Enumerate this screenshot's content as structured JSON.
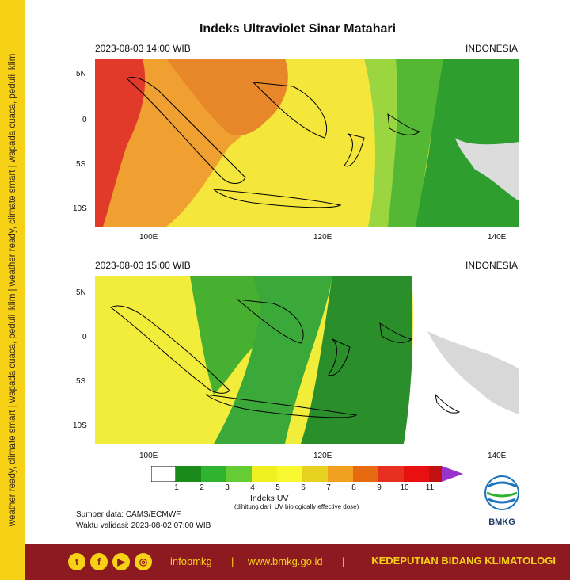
{
  "side_strip": {
    "text": "weather ready, climate smart | wapada cuaca, peduli iklim | weather ready, climate smart | wapada cuaca, peduli iklim"
  },
  "title": "Indeks Ultraviolet Sinar Matahari",
  "panels": [
    {
      "date": "2023-08-03  14:00 WIB",
      "region": "INDONESIA"
    },
    {
      "date": "2023-08-03  15:00 WIB",
      "region": "INDONESIA"
    }
  ],
  "lat_ticks": [
    "5N",
    "0",
    "5S",
    "10S"
  ],
  "lon_ticks": [
    "100E",
    "120E",
    "140E"
  ],
  "colorbar": {
    "title": "Indeks UV",
    "subtitle": "(dihitung dari: UV biologically effective dose)",
    "labels": [
      "1",
      "2",
      "3",
      "4",
      "5",
      "6",
      "7",
      "8",
      "9",
      "10",
      "11"
    ],
    "colors": [
      "#ffffff",
      "#1a8a1a",
      "#2fb42f",
      "#66cc33",
      "#f0f020",
      "#f8f830",
      "#e6d020",
      "#f2a020",
      "#e86a10",
      "#e83020",
      "#e81010",
      "#c01010",
      "#9933cc"
    ]
  },
  "source": {
    "data": "Sumber data: CAMS/ECMWF",
    "validity": "Waktu validasi: 2023-08-02 07:00 WIB"
  },
  "logo": {
    "text": "BMKG",
    "icon": "bmkg-logo-icon"
  },
  "footer": {
    "social_icons": [
      "twitter-icon",
      "facebook-icon",
      "youtube-icon",
      "instagram-icon"
    ],
    "handle": "infobmkg",
    "sep": "|",
    "website": "www.bmkg.go.id",
    "unit": "KEDEPUTIAN BIDANG KLIMATOLOGI"
  }
}
